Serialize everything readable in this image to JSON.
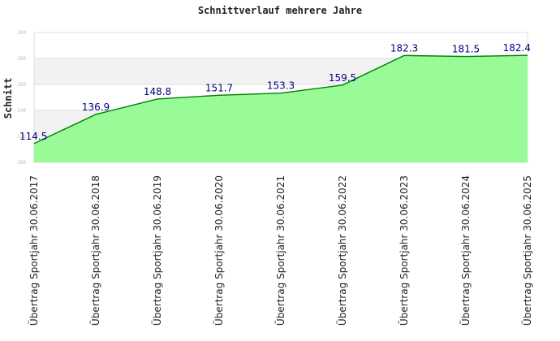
{
  "chart_data": {
    "type": "area",
    "title": "Schnittverlauf mehrere Jahre",
    "xlabel": "",
    "ylabel": "Schnitt",
    "ylim": [
      100,
      200
    ],
    "yticks": [
      "100",
      "120",
      "140",
      "160",
      "180",
      "200"
    ],
    "grid": true,
    "categories": [
      "Übertrag Sportjahr 30.06.2017",
      "Übertrag Sportjahr 30.06.2018",
      "Übertrag Sportjahr 30.06.2019",
      "Übertrag Sportjahr 30.06.2020",
      "Übertrag Sportjahr 30.06.2021",
      "Übertrag Sportjahr 30.06.2022",
      "Übertrag Sportjahr 30.06.2023",
      "Übertrag Sportjahr 30.06.2024",
      "Übertrag Sportjahr 30.06.2025"
    ],
    "values": [
      114.5,
      136.9,
      148.8,
      151.7,
      153.3,
      159.5,
      182.3,
      181.5,
      182.4
    ],
    "value_labels": [
      "114.5",
      "136.9",
      "148.8",
      "151.7",
      "153.3",
      "159.5",
      "182.3",
      "181.5",
      "182.4"
    ],
    "colors": {
      "fill": "#98fb98",
      "line": "#008000",
      "label": "#000080",
      "band": "#f2f2f2"
    }
  }
}
